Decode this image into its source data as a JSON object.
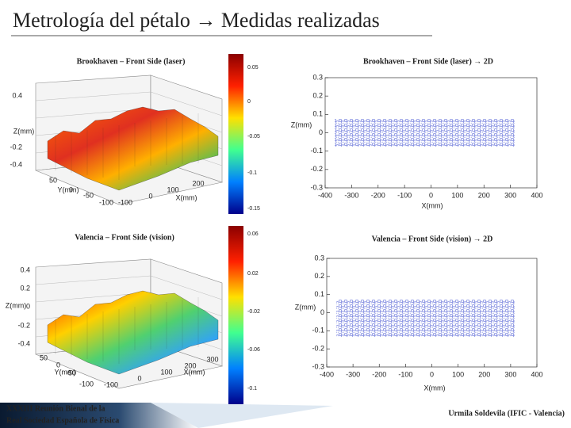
{
  "title": "Metrología del pétalo → Medidas realizadas",
  "plots3d": [
    {
      "caption": "Brookhaven – Front Side (laser)",
      "z_label": "Z(mm)",
      "y_label": "Y(mm)",
      "x_label": "X(mm)",
      "z_ticks": [
        0.4,
        -0.2,
        -0.4
      ],
      "y_ticks": [
        50,
        0,
        -50,
        -100
      ],
      "x_ticks": [
        -100,
        0,
        100,
        200
      ],
      "colorbar_ticks": [
        0.05,
        0,
        -0.05,
        -0.1,
        -0.15
      ]
    },
    {
      "caption": "Valencia – Front Side (vision)",
      "z_label": "Z(mm)",
      "y_label": "Y(mm)",
      "x_label": "X(mm)",
      "z_ticks": [
        0.4,
        0.2,
        0,
        -0.2,
        -0.4
      ],
      "y_ticks": [
        50,
        0,
        -50,
        -100
      ],
      "x_ticks": [
        -100,
        0,
        100,
        200,
        300
      ],
      "colorbar_ticks": [
        0.06,
        0.02,
        -0.02,
        -0.06,
        -0.1
      ]
    }
  ],
  "plots2d": [
    {
      "caption": "Brookhaven – Front Side (laser) → 2D",
      "y_label": "Z(mm)",
      "x_label": "X(mm)",
      "y_ticks": [
        0.3,
        0.2,
        0.1,
        0,
        -0.1,
        -0.2,
        -0.3
      ],
      "x_ticks": [
        -400,
        -300,
        -200,
        -100,
        0,
        100,
        200,
        300,
        400
      ]
    },
    {
      "caption": "Valencia – Front Side (vision) → 2D",
      "y_label": "Z(mm)",
      "x_label": "X(mm)",
      "y_ticks": [
        0.3,
        0.2,
        0.1,
        0,
        -0.1,
        -0.2,
        -0.3
      ],
      "x_ticks": [
        -400,
        -300,
        -200,
        -100,
        0,
        100,
        200,
        300,
        400
      ]
    }
  ],
  "footer": {
    "event": [
      "XXXIII Reunión Bienal de la",
      "Real Sociedad Española de Física"
    ],
    "author": "Urmila Soldevila (IFIC - Valencia)"
  }
}
